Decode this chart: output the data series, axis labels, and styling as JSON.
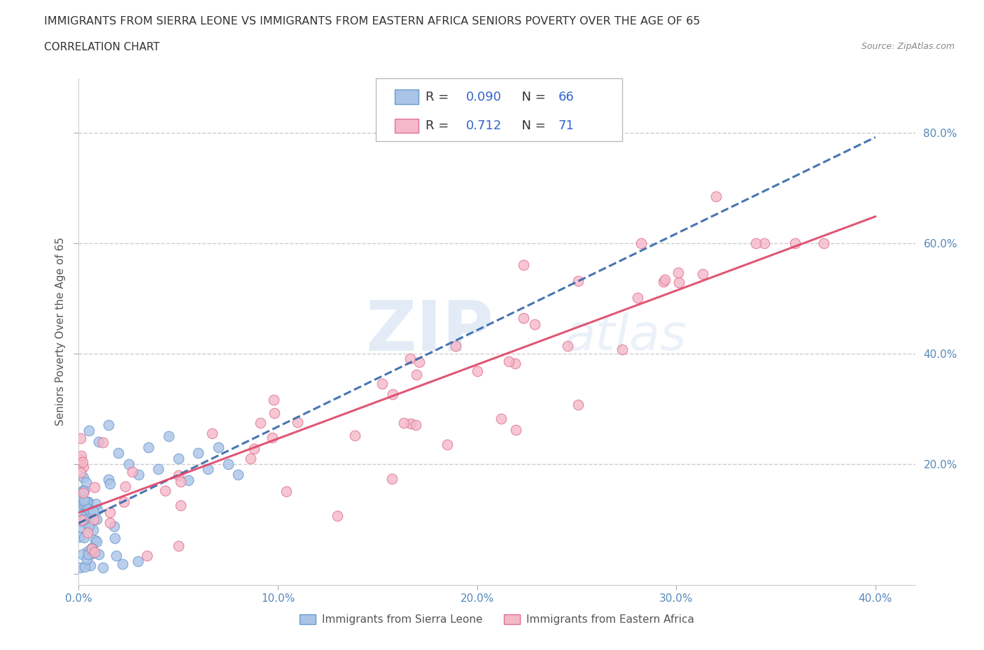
{
  "title": "IMMIGRANTS FROM SIERRA LEONE VS IMMIGRANTS FROM EASTERN AFRICA SENIORS POVERTY OVER THE AGE OF 65",
  "subtitle": "CORRELATION CHART",
  "source": "Source: ZipAtlas.com",
  "ylabel": "Seniors Poverty Over the Age of 65",
  "xlim": [
    0.0,
    0.42
  ],
  "ylim": [
    -0.02,
    0.9
  ],
  "xticks": [
    0.0,
    0.1,
    0.2,
    0.3,
    0.4
  ],
  "xticklabels": [
    "0.0%",
    "10.0%",
    "20.0%",
    "30.0%",
    "40.0%"
  ],
  "yticks": [
    0.0,
    0.2,
    0.4,
    0.6,
    0.8
  ],
  "yticklabels": [
    "",
    "20.0%",
    "40.0%",
    "60.0%",
    "80.0%"
  ],
  "grid_color": "#cccccc",
  "background_color": "#ffffff",
  "sierra_leone_color": "#aac4e8",
  "sierra_leone_edge": "#6699cc",
  "eastern_africa_color": "#f4b8c8",
  "eastern_africa_edge": "#e07090",
  "sierra_leone_R": 0.09,
  "sierra_leone_N": 66,
  "eastern_africa_R": 0.712,
  "eastern_africa_N": 71,
  "sierra_leone_trend_color": "#3366aa",
  "eastern_africa_trend_color": "#dd4466",
  "legend_label_1": "Immigrants from Sierra Leone",
  "legend_label_2": "Immigrants from Eastern Africa",
  "tick_color": "#5588bb",
  "label_color": "#555555",
  "title_color": "#333333",
  "source_color": "#888888"
}
